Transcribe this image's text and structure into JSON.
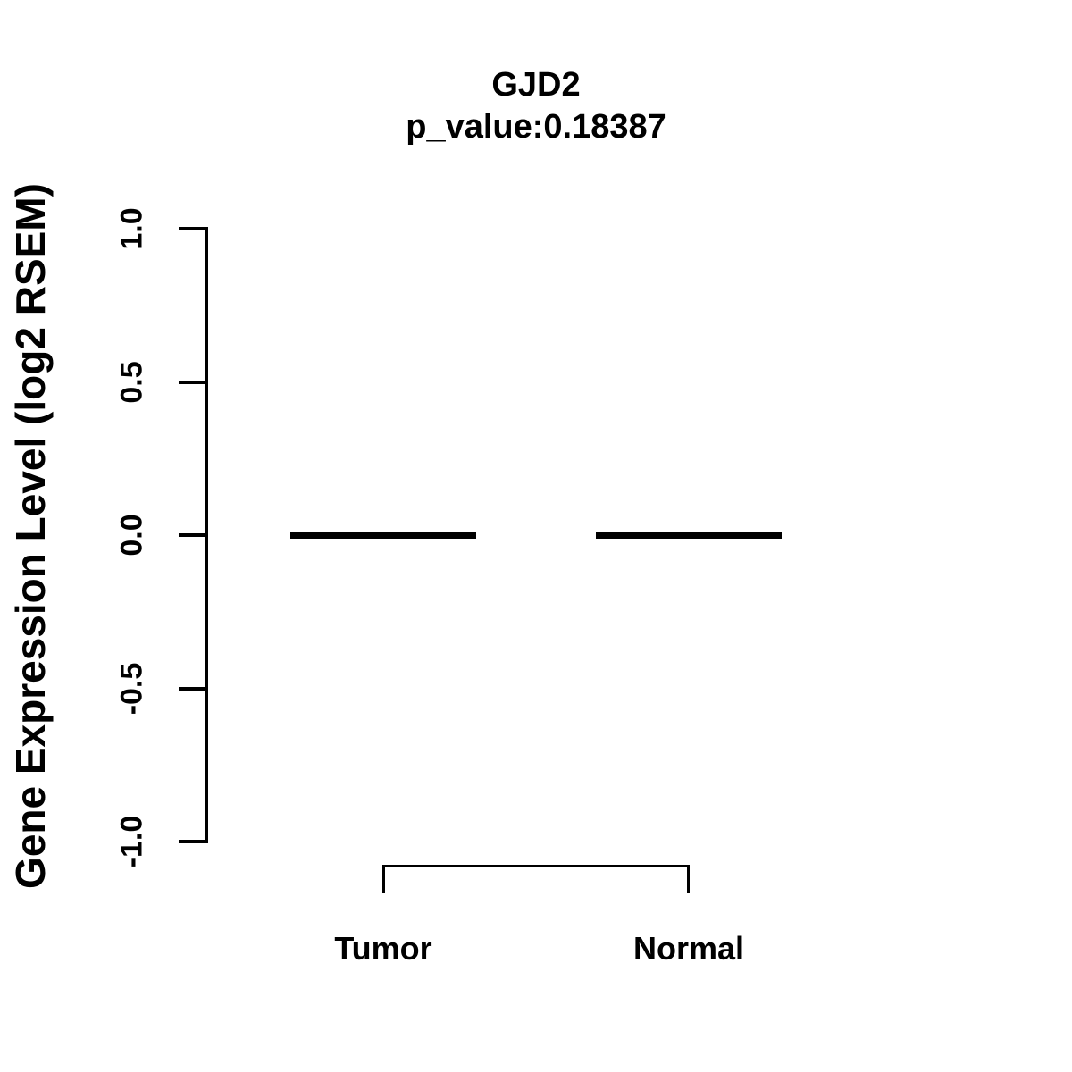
{
  "figure": {
    "background": "#ffffff",
    "ink_color": "#000000"
  },
  "chart_data": {
    "type": "boxplot",
    "title": "GJD2",
    "subtitle": "p_value:0.18387",
    "ylabel": "Gene Expression Level (log2 RSEM)",
    "xlabel": "",
    "ylim": [
      -1.0,
      1.0
    ],
    "yticks": [
      {
        "value": 1.0,
        "label": "1.0"
      },
      {
        "value": 0.5,
        "label": "0.5"
      },
      {
        "value": 0.0,
        "label": "0.0"
      },
      {
        "value": -0.5,
        "label": "-0.5"
      },
      {
        "value": -1.0,
        "label": "-1.0"
      }
    ],
    "categories": [
      "Tumor",
      "Normal"
    ],
    "series": [
      {
        "name": "Tumor",
        "median": 0.0,
        "q1": 0.0,
        "q3": 0.0,
        "whisker_low": 0.0,
        "whisker_high": 0.0
      },
      {
        "name": "Normal",
        "median": 0.0,
        "q1": 0.0,
        "q3": 0.0,
        "whisker_low": 0.0,
        "whisker_high": 0.0
      }
    ],
    "annotations": [
      {
        "type": "comparison-bracket",
        "from": "Tumor",
        "to": "Normal"
      }
    ],
    "grid": false,
    "legend": false
  }
}
